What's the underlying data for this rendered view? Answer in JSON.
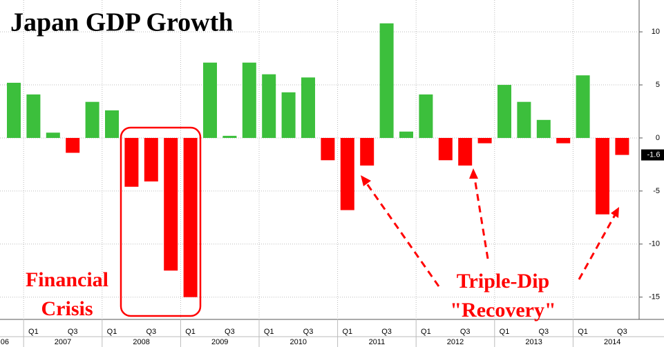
{
  "chart_data": {
    "type": "bar",
    "title": "Japan GDP Growth",
    "categories": [
      null,
      "Q1",
      null,
      "Q3",
      null,
      "Q1",
      null,
      "Q3",
      null,
      "Q1",
      null,
      "Q3",
      null,
      "Q1",
      null,
      "Q3",
      null,
      "Q1",
      null,
      "Q3",
      null,
      "Q1",
      null,
      "Q3",
      null,
      "Q1",
      null,
      "Q3",
      null,
      "Q1",
      null,
      "Q3"
    ],
    "years": [
      "06",
      "2007",
      "2008",
      "2009",
      "2010",
      "2011",
      "2012",
      "2013",
      "2014"
    ],
    "values": [
      5.2,
      4.1,
      0.5,
      -1.4,
      3.4,
      2.6,
      -4.6,
      -4.1,
      -12.5,
      -15,
      7.1,
      0.2,
      7.1,
      6.0,
      4.3,
      5.7,
      -2.1,
      -6.8,
      -2.6,
      10.8,
      0.6,
      4.1,
      -2.1,
      -2.6,
      -0.5,
      5.0,
      3.4,
      1.7,
      -0.5,
      5.9,
      -7.2,
      -1.6
    ],
    "positive_color": "#3cbf3c",
    "negative_color": "#ff0000",
    "ylim": [
      -17.1,
      13
    ],
    "yticks": [
      -15,
      -10,
      -5,
      0,
      5,
      10
    ],
    "grid": true,
    "annotations": [
      "Financial",
      "Crisis",
      "Triple-Dip",
      "\"Recovery\""
    ]
  }
}
